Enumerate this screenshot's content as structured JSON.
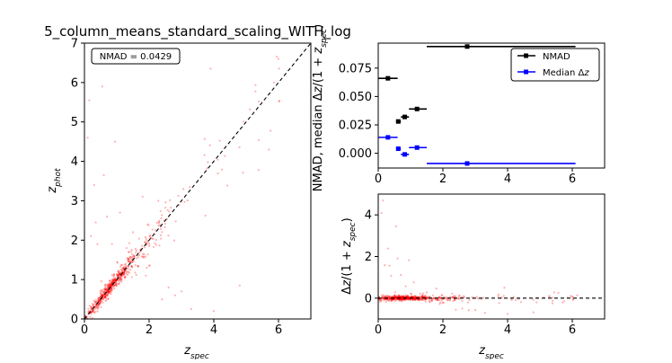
{
  "title": "5_column_means_standard_scaling_WITH_log",
  "chart_data": [
    {
      "id": "main-scatter",
      "type": "scatter",
      "xlabel": "z_spec",
      "ylabel": "z_phot",
      "xlim": [
        0,
        7
      ],
      "ylim": [
        0,
        7
      ],
      "xticks": [
        0,
        2,
        4,
        6
      ],
      "yticks": [
        0,
        1,
        2,
        3,
        4,
        5,
        6,
        7
      ],
      "annotation": "NMAD = 0.0429",
      "reference_line": "y = x",
      "point_color": "#ff0000"
    },
    {
      "id": "nmad-bias-binned",
      "type": "scatter",
      "ylabel": "NMAD, median Δz/(1 + z_spec)",
      "xlim": [
        0,
        7
      ],
      "ylim": [
        -0.013,
        0.097
      ],
      "xticks": [
        0,
        2,
        4,
        6
      ],
      "yticks": [
        "0.000",
        "0.025",
        "0.050",
        "0.075"
      ],
      "legend_position": "top-right",
      "series": [
        {
          "name": "NMAD",
          "color": "#000000",
          "points": [
            {
              "x": 0.3,
              "xerr": [
                0.0,
                0.6
              ],
              "y": 0.066
            },
            {
              "x": 0.62,
              "xerr": [
                0.55,
                0.7
              ],
              "y": 0.028
            },
            {
              "x": 0.82,
              "xerr": [
                0.7,
                0.95
              ],
              "y": 0.032
            },
            {
              "x": 1.2,
              "xerr": [
                0.95,
                1.5
              ],
              "y": 0.039
            },
            {
              "x": 2.75,
              "xerr": [
                1.5,
                6.1
              ],
              "y": 0.094
            }
          ]
        },
        {
          "name": "Median Δz",
          "color": "#0000ff",
          "points": [
            {
              "x": 0.3,
              "xerr": [
                0.0,
                0.6
              ],
              "y": 0.014
            },
            {
              "x": 0.62,
              "xerr": [
                0.55,
                0.7
              ],
              "y": 0.004
            },
            {
              "x": 0.82,
              "xerr": [
                0.7,
                0.95
              ],
              "y": -0.001
            },
            {
              "x": 1.2,
              "xerr": [
                0.95,
                1.5
              ],
              "y": 0.005
            },
            {
              "x": 2.75,
              "xerr": [
                1.5,
                6.1
              ],
              "y": -0.009
            }
          ]
        }
      ]
    },
    {
      "id": "residual-scatter",
      "type": "scatter",
      "xlabel": "z_spec",
      "ylabel": "Δz/(1 + z_spec)",
      "xlim": [
        0,
        7
      ],
      "ylim": [
        -1,
        5
      ],
      "xticks": [
        0,
        2,
        4,
        6
      ],
      "yticks": [
        0,
        2,
        4
      ],
      "reference_line": "y = 0",
      "point_color": "#ff0000"
    }
  ]
}
